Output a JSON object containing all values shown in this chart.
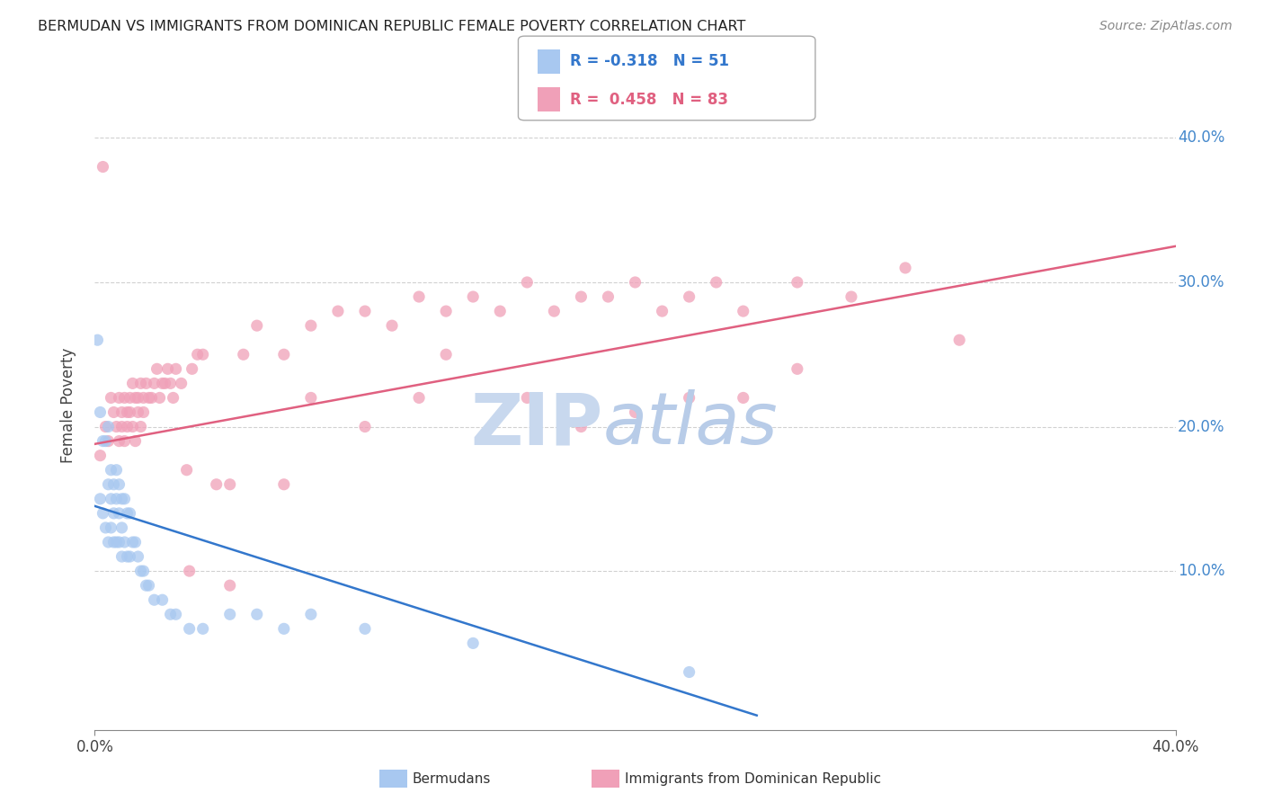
{
  "title": "BERMUDAN VS IMMIGRANTS FROM DOMINICAN REPUBLIC FEMALE POVERTY CORRELATION CHART",
  "source": "Source: ZipAtlas.com",
  "ylabel": "Female Poverty",
  "right_yticks": [
    "40.0%",
    "30.0%",
    "20.0%",
    "10.0%"
  ],
  "right_ytick_vals": [
    0.4,
    0.3,
    0.2,
    0.1
  ],
  "xlim": [
    0.0,
    0.4
  ],
  "ylim": [
    -0.01,
    0.44
  ],
  "legend_r1": "R = -0.318",
  "legend_n1": "N = 51",
  "legend_r2": "R =  0.458",
  "legend_n2": "N = 83",
  "bermuda_color": "#a8c8f0",
  "dominican_color": "#f0a0b8",
  "bermuda_line_color": "#3377cc",
  "dominican_line_color": "#e06080",
  "watermark_zip_color": "#c8d8ee",
  "watermark_atlas_color": "#b8cce8",
  "grid_color": "#cccccc",
  "bg_color": "#ffffff",
  "bermuda_x": [
    0.001,
    0.002,
    0.002,
    0.003,
    0.003,
    0.004,
    0.004,
    0.005,
    0.005,
    0.005,
    0.006,
    0.006,
    0.006,
    0.007,
    0.007,
    0.007,
    0.008,
    0.008,
    0.008,
    0.009,
    0.009,
    0.009,
    0.01,
    0.01,
    0.01,
    0.011,
    0.011,
    0.012,
    0.012,
    0.013,
    0.013,
    0.014,
    0.015,
    0.016,
    0.017,
    0.018,
    0.019,
    0.02,
    0.022,
    0.025,
    0.028,
    0.03,
    0.035,
    0.04,
    0.05,
    0.06,
    0.07,
    0.08,
    0.1,
    0.14,
    0.22
  ],
  "bermuda_y": [
    0.26,
    0.21,
    0.15,
    0.19,
    0.14,
    0.19,
    0.13,
    0.2,
    0.16,
    0.12,
    0.17,
    0.15,
    0.13,
    0.16,
    0.14,
    0.12,
    0.17,
    0.15,
    0.12,
    0.16,
    0.14,
    0.12,
    0.15,
    0.13,
    0.11,
    0.15,
    0.12,
    0.14,
    0.11,
    0.14,
    0.11,
    0.12,
    0.12,
    0.11,
    0.1,
    0.1,
    0.09,
    0.09,
    0.08,
    0.08,
    0.07,
    0.07,
    0.06,
    0.06,
    0.07,
    0.07,
    0.06,
    0.07,
    0.06,
    0.05,
    0.03
  ],
  "dominican_x": [
    0.002,
    0.003,
    0.004,
    0.005,
    0.006,
    0.007,
    0.008,
    0.009,
    0.009,
    0.01,
    0.01,
    0.011,
    0.011,
    0.012,
    0.012,
    0.013,
    0.013,
    0.014,
    0.014,
    0.015,
    0.015,
    0.016,
    0.016,
    0.017,
    0.017,
    0.018,
    0.018,
    0.019,
    0.02,
    0.021,
    0.022,
    0.023,
    0.024,
    0.025,
    0.026,
    0.027,
    0.028,
    0.029,
    0.03,
    0.032,
    0.034,
    0.036,
    0.038,
    0.04,
    0.045,
    0.05,
    0.055,
    0.06,
    0.07,
    0.08,
    0.09,
    0.1,
    0.11,
    0.12,
    0.13,
    0.14,
    0.15,
    0.16,
    0.17,
    0.18,
    0.19,
    0.2,
    0.21,
    0.22,
    0.23,
    0.24,
    0.26,
    0.28,
    0.3,
    0.32,
    0.035,
    0.05,
    0.07,
    0.1,
    0.13,
    0.16,
    0.2,
    0.24,
    0.18,
    0.26,
    0.08,
    0.12,
    0.22
  ],
  "dominican_y": [
    0.18,
    0.38,
    0.2,
    0.19,
    0.22,
    0.21,
    0.2,
    0.22,
    0.19,
    0.21,
    0.2,
    0.22,
    0.19,
    0.21,
    0.2,
    0.22,
    0.21,
    0.23,
    0.2,
    0.22,
    0.19,
    0.21,
    0.22,
    0.23,
    0.2,
    0.22,
    0.21,
    0.23,
    0.22,
    0.22,
    0.23,
    0.24,
    0.22,
    0.23,
    0.23,
    0.24,
    0.23,
    0.22,
    0.24,
    0.23,
    0.17,
    0.24,
    0.25,
    0.25,
    0.16,
    0.16,
    0.25,
    0.27,
    0.25,
    0.27,
    0.28,
    0.28,
    0.27,
    0.29,
    0.28,
    0.29,
    0.28,
    0.3,
    0.28,
    0.29,
    0.29,
    0.3,
    0.28,
    0.29,
    0.3,
    0.28,
    0.3,
    0.29,
    0.31,
    0.26,
    0.1,
    0.09,
    0.16,
    0.2,
    0.25,
    0.22,
    0.21,
    0.22,
    0.2,
    0.24,
    0.22,
    0.22,
    0.22
  ],
  "blue_line_x": [
    0.0,
    0.245
  ],
  "blue_line_y": [
    0.145,
    0.0
  ],
  "pink_line_x": [
    0.0,
    0.4
  ],
  "pink_line_y": [
    0.188,
    0.325
  ]
}
